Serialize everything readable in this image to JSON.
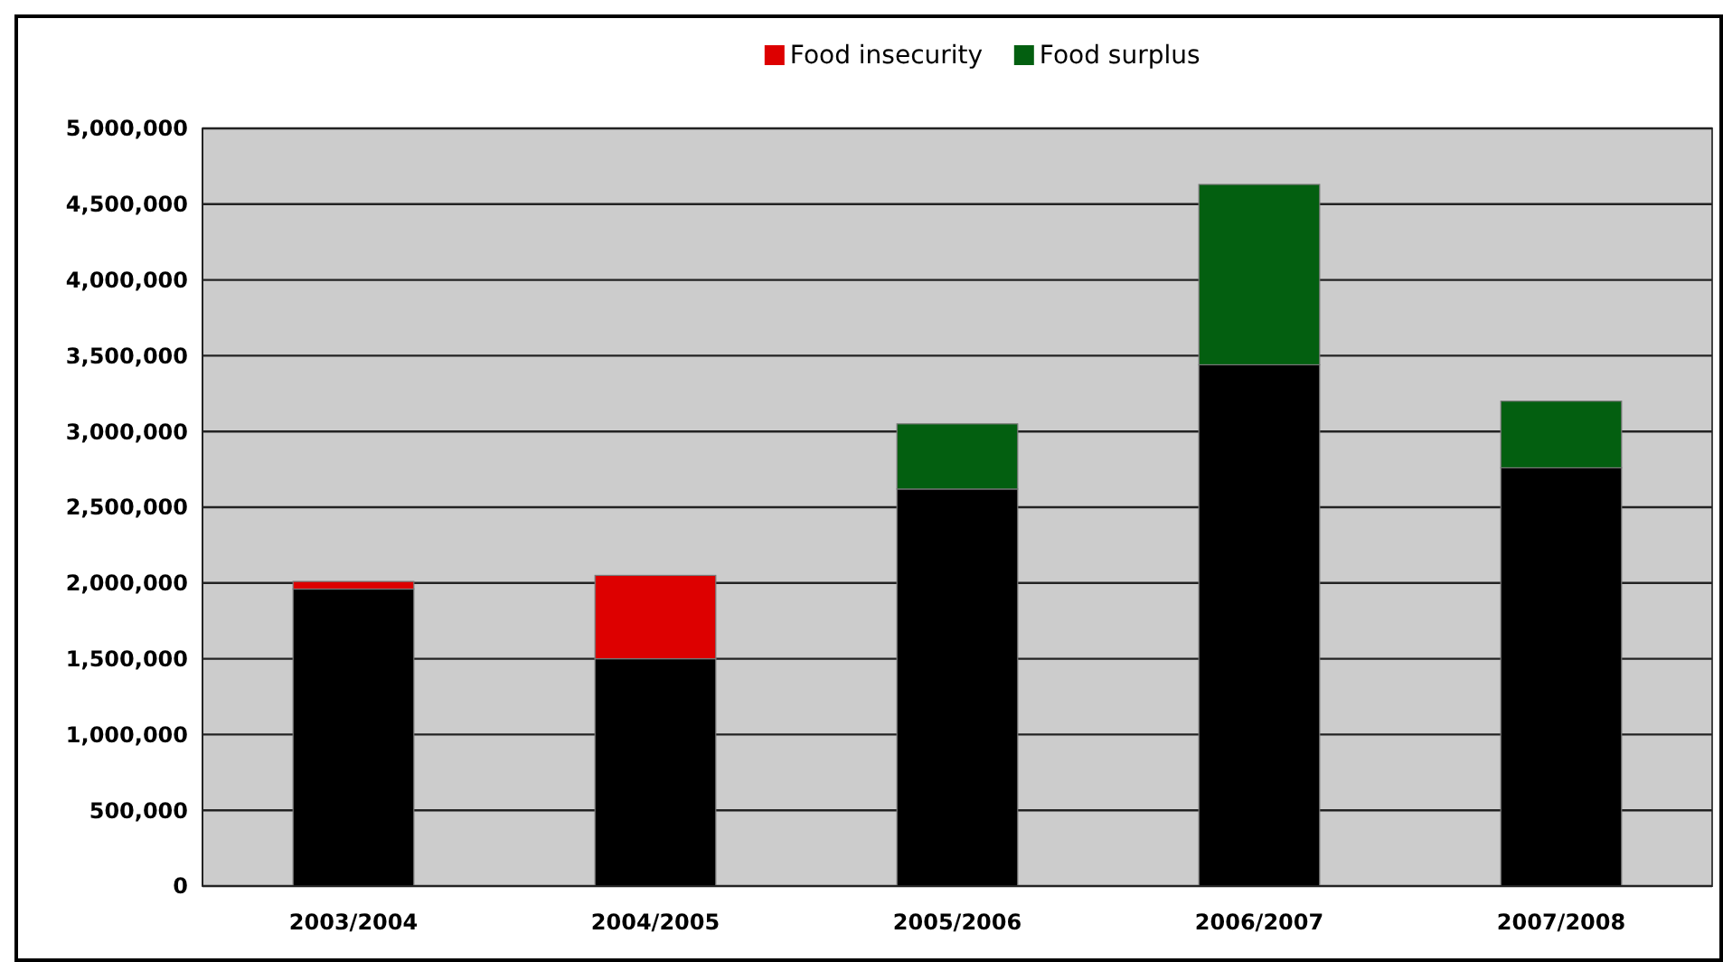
{
  "chart_data": {
    "type": "bar",
    "stacked": true,
    "categories": [
      "2003/2004",
      "2004/2005",
      "2005/2006",
      "2006/2007",
      "2007/2008"
    ],
    "series": [
      {
        "color": "#000000",
        "values": [
          1960000,
          1500000,
          2620000,
          3440000,
          2760000
        ]
      },
      {
        "name": "Food insecurity",
        "color": "#dd0000",
        "values": [
          50000,
          550000,
          null,
          null,
          null
        ]
      },
      {
        "name": "Food surplus",
        "color": "#035f10",
        "values": [
          null,
          null,
          430000,
          1190000,
          440000
        ]
      }
    ],
    "ylim": [
      0,
      5000000
    ],
    "yticks": [
      {
        "value": 0,
        "label": "0"
      },
      {
        "value": 500000,
        "label": "500,000"
      },
      {
        "value": 1000000,
        "label": "1,000,000"
      },
      {
        "value": 1500000,
        "label": "1,500,000"
      },
      {
        "value": 2000000,
        "label": "2,000,000"
      },
      {
        "value": 2500000,
        "label": "2,500,000"
      },
      {
        "value": 3000000,
        "label": "3,000,000"
      },
      {
        "value": 3500000,
        "label": "3,500,000"
      },
      {
        "value": 4000000,
        "label": "4,000,000"
      },
      {
        "value": 4500000,
        "label": "4,500,000"
      },
      {
        "value": 5000000,
        "label": "5,000,000"
      }
    ],
    "grid": "y",
    "legend": "top"
  }
}
